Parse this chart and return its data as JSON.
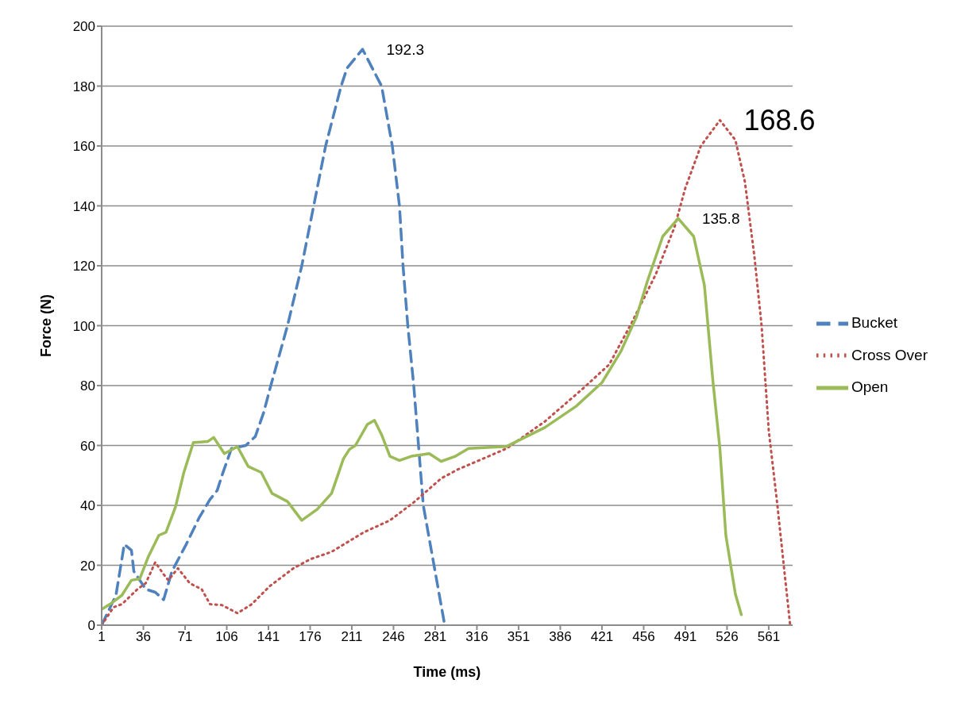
{
  "chart_data": {
    "type": "line",
    "xlabel": "Time (ms)",
    "ylabel": "Force (N)",
    "xlim": [
      1,
      581
    ],
    "xticks": [
      1,
      36,
      71,
      106,
      141,
      176,
      211,
      246,
      281,
      316,
      351,
      386,
      421,
      456,
      491,
      526,
      561
    ],
    "ylim": [
      0,
      200
    ],
    "yticks": [
      0,
      20,
      40,
      60,
      80,
      100,
      120,
      140,
      160,
      180,
      200
    ],
    "grid": "y",
    "legend": "right",
    "marker": "none",
    "series": [
      {
        "name": "Bucket",
        "color": "#4f81bd",
        "line_style": "dashed",
        "x": [
          1,
          13,
          20,
          26,
          28,
          38,
          46,
          53,
          60,
          72,
          83,
          92,
          98,
          102,
          110,
          122,
          130,
          137,
          143,
          157,
          169,
          179,
          189,
          202,
          207,
          220,
          236,
          245,
          251,
          254,
          258,
          263,
          267,
          271,
          280,
          289
        ],
        "values": [
          0,
          10,
          27,
          25,
          18,
          12,
          11,
          8.5,
          18,
          27,
          36,
          42,
          45,
          50,
          59,
          60,
          63,
          71,
          80,
          100,
          120,
          140,
          160,
          180,
          186,
          192.3,
          180,
          160,
          140,
          120,
          100,
          80,
          60,
          40,
          20,
          0
        ]
      },
      {
        "name": "Cross Over",
        "color": "#c0504d",
        "line_style": "dotted",
        "x": [
          1,
          11,
          18,
          31,
          38,
          46,
          53,
          57,
          65,
          75,
          85,
          92,
          102,
          115,
          127,
          142,
          162,
          176,
          194,
          221,
          243,
          263,
          286,
          300,
          341,
          373,
          405,
          427,
          446,
          466,
          482,
          491,
          504,
          520,
          533,
          541,
          549,
          555,
          561,
          568,
          574,
          579
        ],
        "values": [
          0,
          6,
          7,
          12,
          14,
          21,
          17,
          15,
          19,
          14,
          12,
          7,
          6.7,
          4,
          7,
          13,
          19,
          22,
          24.5,
          31,
          35,
          41,
          49,
          52,
          59,
          68,
          79,
          87,
          101,
          117,
          133,
          146,
          160,
          168.6,
          162,
          148,
          123,
          100,
          65,
          41,
          18.5,
          0
        ]
      },
      {
        "name": "Open",
        "color": "#9bbb59",
        "line_style": "solid",
        "x": [
          1,
          8,
          18,
          26,
          33,
          40,
          49,
          55,
          63,
          70,
          78,
          90,
          95,
          104,
          115,
          124,
          135,
          144,
          157,
          169,
          182,
          194,
          204,
          209,
          214,
          224,
          230,
          236,
          243,
          251,
          261,
          276,
          286,
          298,
          309,
          341,
          373,
          399,
          421,
          437,
          450,
          459,
          472,
          485,
          498,
          507,
          514,
          520,
          525,
          533,
          538
        ],
        "values": [
          5.3,
          7,
          10,
          15,
          15.5,
          22.7,
          30,
          31,
          39.5,
          51,
          61,
          61.3,
          62.7,
          57.3,
          59.6,
          53,
          51,
          44,
          41.3,
          35,
          38.7,
          44,
          55.6,
          58.7,
          60,
          67,
          68.4,
          63.6,
          56.4,
          55,
          56.4,
          57.3,
          54.7,
          56.4,
          59,
          59.7,
          66,
          73,
          81,
          91.5,
          103,
          114.7,
          129.8,
          135.8,
          129.8,
          113.5,
          82,
          59,
          30,
          10.4,
          3.5
        ]
      }
    ],
    "annotations": [
      {
        "text": "192.3",
        "x": 220,
        "y": 192.3
      },
      {
        "text": "168.6",
        "x": 520,
        "y": 168.6
      },
      {
        "text": "135.8",
        "x": 485,
        "y": 135.8
      }
    ]
  }
}
